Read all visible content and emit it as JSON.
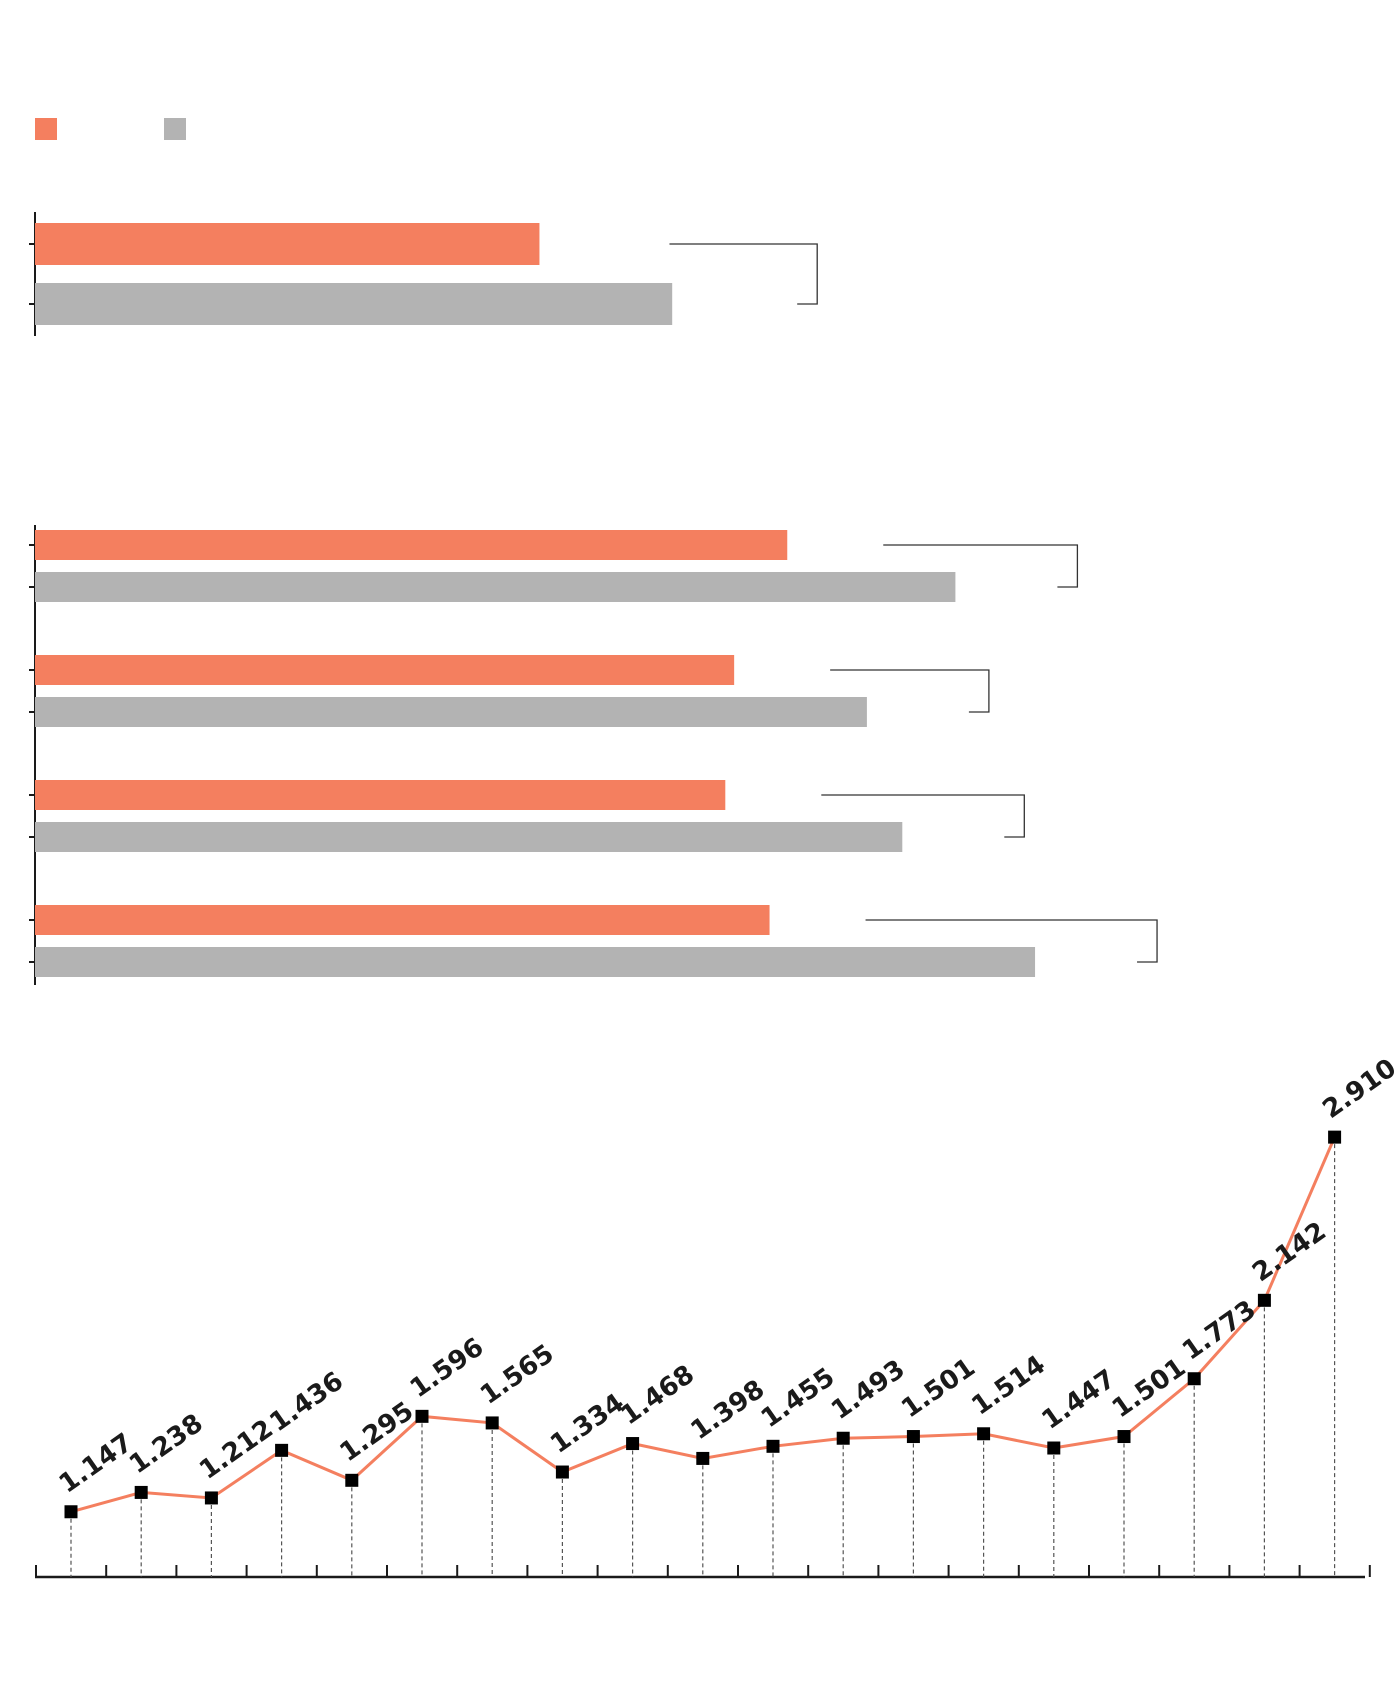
{
  "colors": {
    "orange": "#f47f5f",
    "gray": "#b3b3b3",
    "axis": "#1a1a1a",
    "bracket": "#333333",
    "marker": "#000000",
    "guide": "#555555"
  },
  "legend": {
    "items": [
      {
        "color_key": "orange"
      },
      {
        "color_key": "gray"
      }
    ]
  },
  "chart_data": [
    {
      "type": "bar",
      "orientation": "horizontal",
      "groups": 1,
      "series": [
        {
          "color_key": "orange",
          "values": [
            0.57
          ]
        },
        {
          "color_key": "gray",
          "values": [
            0.72
          ]
        }
      ],
      "grid": false,
      "brackets": true
    },
    {
      "type": "bar",
      "orientation": "horizontal",
      "groups": 4,
      "series": [
        {
          "color_key": "orange",
          "values": [
            0.85,
            0.79,
            0.78,
            0.83
          ]
        },
        {
          "color_key": "gray",
          "values": [
            1.04,
            0.94,
            0.98,
            1.13
          ]
        }
      ],
      "grid": false,
      "brackets": true
    },
    {
      "type": "line",
      "x_count": 19,
      "values": [
        1.147,
        1.238,
        1.212,
        1.436,
        1.295,
        1.596,
        1.565,
        1.334,
        1.468,
        1.398,
        1.455,
        1.493,
        1.501,
        1.514,
        1.447,
        1.501,
        1.773,
        2.142,
        2.91
      ],
      "labels": [
        "1.147",
        "1.238",
        "1.212",
        "1.436",
        "1.295",
        "1.596",
        "1.565",
        "1.334",
        "1.468",
        "1.398",
        "1.455",
        "1.493",
        "1.501",
        "1.514",
        "1.447",
        "1.501",
        "1.773",
        "2.142",
        "2.910"
      ],
      "ylim": [
        1.0,
        3.0
      ],
      "grid": false,
      "drop_lines": true
    }
  ]
}
